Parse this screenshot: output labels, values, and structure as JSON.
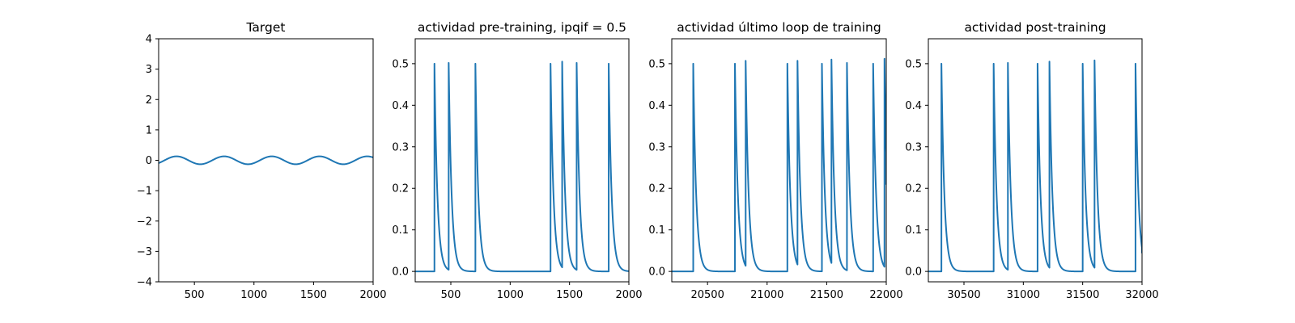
{
  "colors": {
    "line": "#1f77b4",
    "axes": "#000000",
    "background": "#ffffff"
  },
  "chart_data": [
    {
      "type": "line",
      "title": "Target",
      "xlim": [
        200,
        2000
      ],
      "ylim": [
        -4,
        4
      ],
      "xticks": [
        500,
        1000,
        1500,
        2000
      ],
      "xtick_labels": [
        "500",
        "1000",
        "1500",
        "2000"
      ],
      "yticks": [
        -4,
        -3,
        -2,
        -1,
        0,
        1,
        2,
        3,
        4
      ],
      "ytick_labels": [
        "−4",
        "−3",
        "−2",
        "−1",
        "0",
        "1",
        "2",
        "3",
        "4"
      ],
      "series": [
        {
          "signal": "sine",
          "amplitude": 0.13,
          "period": 400,
          "peak_x": 350,
          "x_range": [
            200,
            2000
          ]
        }
      ]
    },
    {
      "type": "line",
      "title": "actividad pre-training, ipqif = 0.5",
      "xlim": [
        200,
        2000
      ],
      "ylim": [
        -0.025,
        0.56
      ],
      "xticks": [
        500,
        1000,
        1500,
        2000
      ],
      "xtick_labels": [
        "500",
        "1000",
        "1500",
        "2000"
      ],
      "yticks": [
        0,
        0.1,
        0.2,
        0.3,
        0.4,
        0.5
      ],
      "ytick_labels": [
        "0.0",
        "0.1",
        "0.2",
        "0.3",
        "0.4",
        "0.5"
      ],
      "series": [
        {
          "signal": "spikes",
          "baseline": 0,
          "decay": 25,
          "spike_x": [
            362,
            482,
            707,
            1340,
            1438,
            1560,
            1830
          ],
          "spike_peaks": [
            0.5,
            0.502,
            0.5,
            0.5,
            0.505,
            0.502,
            0.5
          ],
          "x_range": [
            200,
            2000
          ]
        }
      ]
    },
    {
      "type": "line",
      "title": "actividad último loop de training",
      "xlim": [
        20200,
        22000
      ],
      "ylim": [
        -0.025,
        0.56
      ],
      "xticks": [
        20500,
        21000,
        21500,
        22000
      ],
      "xtick_labels": [
        "20500",
        "21000",
        "21500",
        "22000"
      ],
      "yticks": [
        0,
        0.1,
        0.2,
        0.3,
        0.4,
        0.5
      ],
      "ytick_labels": [
        "0.0",
        "0.1",
        "0.2",
        "0.3",
        "0.4",
        "0.5"
      ],
      "series": [
        {
          "signal": "spikes",
          "baseline": 0,
          "decay": 25,
          "spike_x": [
            20380,
            20730,
            20820,
            21170,
            21255,
            21460,
            21540,
            21670,
            21890,
            21985
          ],
          "spike_peaks": [
            0.5,
            0.5,
            0.507,
            0.5,
            0.507,
            0.5,
            0.51,
            0.502,
            0.5,
            0.512
          ],
          "x_range": [
            20200,
            22000
          ],
          "end_value": 0.21
        }
      ]
    },
    {
      "type": "line",
      "title": "actividad post-training",
      "xlim": [
        30200,
        32000
      ],
      "ylim": [
        -0.025,
        0.56
      ],
      "xticks": [
        30500,
        31000,
        31500,
        32000
      ],
      "xtick_labels": [
        "30500",
        "31000",
        "31500",
        "32000"
      ],
      "yticks": [
        0,
        0.1,
        0.2,
        0.3,
        0.4,
        0.5
      ],
      "ytick_labels": [
        "0.0",
        "0.1",
        "0.2",
        "0.3",
        "0.4",
        "0.5"
      ],
      "series": [
        {
          "signal": "spikes",
          "baseline": 0,
          "decay": 25,
          "spike_x": [
            30310,
            30750,
            30870,
            31120,
            31220,
            31500,
            31600,
            31945
          ],
          "spike_peaks": [
            0.5,
            0.5,
            0.502,
            0.5,
            0.505,
            0.5,
            0.508,
            0.5
          ],
          "x_range": [
            30200,
            32000
          ],
          "end_value": 0.045
        }
      ]
    }
  ]
}
